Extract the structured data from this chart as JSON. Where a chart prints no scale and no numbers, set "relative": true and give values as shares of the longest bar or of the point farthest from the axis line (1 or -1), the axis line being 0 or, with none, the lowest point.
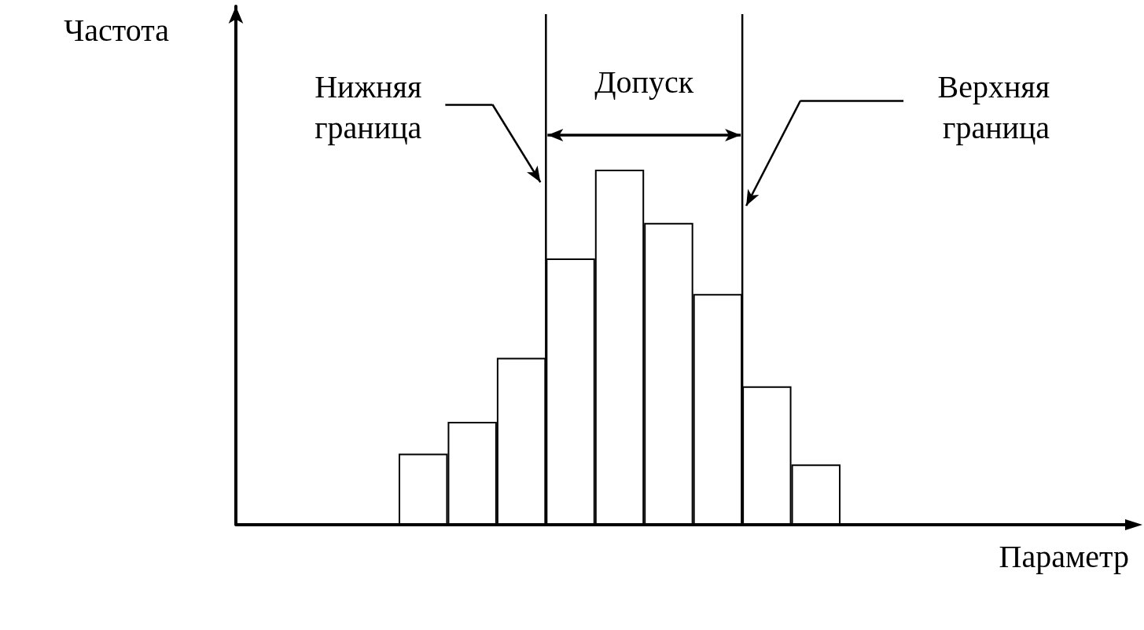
{
  "chart_data": {
    "type": "bar",
    "relative": true,
    "categories": [
      null,
      null,
      null,
      null,
      null,
      null,
      null,
      null,
      null
    ],
    "values": [
      0.2,
      0.29,
      0.47,
      0.75,
      1,
      0.85,
      0.65,
      0.39,
      0.17
    ],
    "color": "#ffffff",
    "ref_lines": [
      {
        "axis": "x",
        "label": "Нижняя граница",
        "color": "#000000"
      },
      {
        "axis": "x",
        "label": "Верхняя граница",
        "color": "#000000"
      }
    ],
    "annotations": [
      "Частота",
      "Допуск",
      "Параметр"
    ],
    "grid": false
  }
}
